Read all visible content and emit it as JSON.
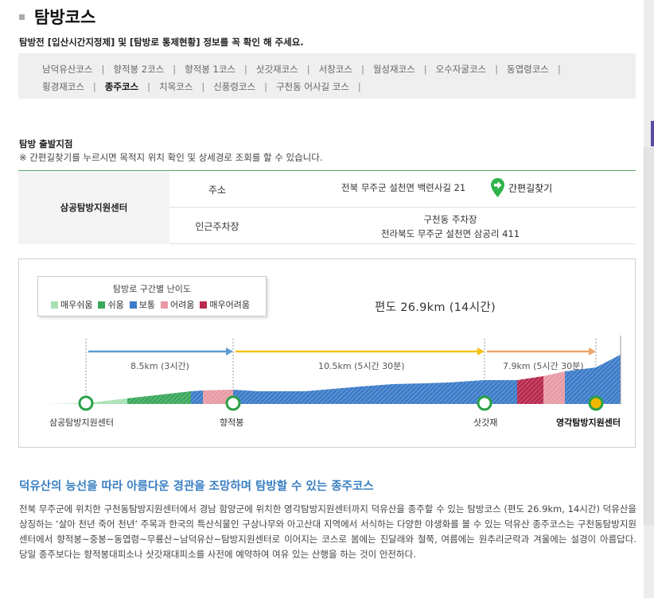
{
  "page": {
    "title": "탐방코스",
    "notice": "탐방전 [입산시간지정제] 및 [탐방로 통제현황] 정보를 꼭 확인 해 주세요."
  },
  "courses": [
    {
      "label": "남덕유산코스",
      "active": false
    },
    {
      "label": "향적봉 2코스",
      "active": false
    },
    {
      "label": "향적봉 1코스",
      "active": false
    },
    {
      "label": "삿갓재코스",
      "active": false
    },
    {
      "label": "서창코스",
      "active": false
    },
    {
      "label": "월성재코스",
      "active": false
    },
    {
      "label": "오수자굴코스",
      "active": false
    },
    {
      "label": "동엽령코스",
      "active": false
    },
    {
      "label": "횡경재코스",
      "active": false
    },
    {
      "label": "종주코스",
      "active": true
    },
    {
      "label": "치목코스",
      "active": false
    },
    {
      "label": "신풍령코스",
      "active": false
    },
    {
      "label": "구천동 어사길 코스",
      "active": false
    }
  ],
  "start": {
    "heading": "탐방 출발지점",
    "note": "※ 간편길찾기를 누르시면 목적지 위치 확인 및 상세경로 조회를 할 수 있습니다.",
    "name": "삼공탐방지원센터",
    "address_label": "주소",
    "address": "전북 무주군 설천면 백련사길 21",
    "map_link": "간편길찾기",
    "parking_label": "인근주차장",
    "parking_line1": "구천동 주차장",
    "parking_line2": "전라북도 무주군 설천면 삼공리 411"
  },
  "chart": {
    "legend_title": "탐방로 구간별 난이도",
    "legend": [
      {
        "label": "매우쉬움",
        "color": "#a8e0b4"
      },
      {
        "label": "쉬움",
        "color": "#3aa85b"
      },
      {
        "label": "보통",
        "color": "#3d7cc9"
      },
      {
        "label": "어려움",
        "color": "#e89aa4"
      },
      {
        "label": "매우어려움",
        "color": "#b8284d"
      }
    ],
    "total": "편도 26.9km (14시간)",
    "segments": [
      {
        "label": "8.5km (3시간)",
        "color": "#5b9bd1"
      },
      {
        "label": "10.5km (5시간 30분)",
        "color": "#f5c218"
      },
      {
        "label": "7.9km (5시간 30분)",
        "color": "#eda66a"
      }
    ],
    "nodes": [
      {
        "label": "삼공탐방지원센터"
      },
      {
        "label": "향적봉"
      },
      {
        "label": "삿갓재"
      },
      {
        "label": "영각탐방지원센터"
      }
    ]
  },
  "description": {
    "title": "덕유산의 능선을 따라 아름다운 경관을 조망하며 탐방할 수 있는 종주코스",
    "body": "전북 무주군에 위치한 구천동탐방지원센터에서 경남 함양군에 위치한 영각탐방지원센터까지 덕유산을 종주할 수 있는 탐방코스 (편도 26.9km, 14시간) 덕유산을 상징하는 ‘살아 천년 죽어 천년’ 주목과 한국의 특산식물인 구상나무와 아고산대 지역에서 서식하는 다양한 야생화를 볼 수 있는 덕유산 종주코스는 구천동탐방지원센터에서 향적봉~중봉~동엽령~무룡산~남덕유산~탐방지원센터로 이어지는 코스로 봄에는 진달래와 철쭉, 여름에는 원추리군락과 겨울에는 설경이 아름답다. 당일 종주보다는 향적봉대피소나 삿갓재대피소를 사전에 예약하여 여유 있는 산행을 하는 것이 안전하다."
  }
}
